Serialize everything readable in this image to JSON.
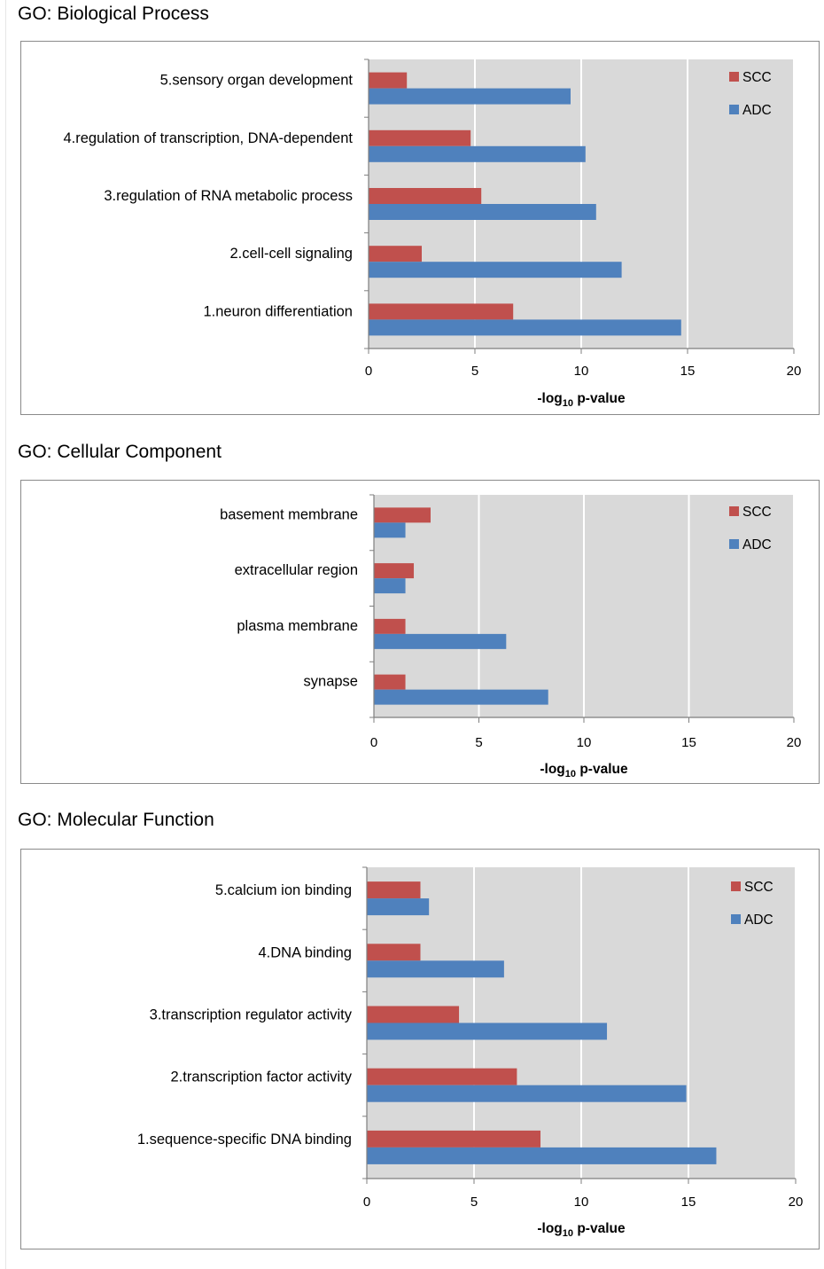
{
  "chart_data": [
    {
      "type": "bar",
      "orientation": "horizontal",
      "title": "GO: Biological Process",
      "categories": [
        "5.sensory organ development",
        "4.regulation of transcription, DNA-dependent",
        "3.regulation of RNA metabolic process",
        "2.cell-cell signaling",
        "1.neuron differentiation"
      ],
      "series": [
        {
          "name": "SCC",
          "color": "#c0504d",
          "values": [
            1.8,
            4.8,
            5.3,
            2.5,
            6.8
          ]
        },
        {
          "name": "ADC",
          "color": "#4f81bd",
          "values": [
            9.5,
            10.2,
            10.7,
            11.9,
            14.7
          ]
        }
      ],
      "xlabel_main": "-log",
      "xlabel_sub": "10",
      "xlabel_rest": " p-value",
      "xlim": [
        0,
        20
      ],
      "xticks": [
        "0",
        "5",
        "10",
        "15",
        "20"
      ],
      "grid": true,
      "legend": "top-right"
    },
    {
      "type": "bar",
      "orientation": "horizontal",
      "title": "GO: Cellular Component",
      "categories": [
        "basement membrane",
        "extracellular region",
        "plasma membrane",
        "synapse"
      ],
      "series": [
        {
          "name": "SCC",
          "color": "#c0504d",
          "values": [
            2.7,
            1.9,
            1.5,
            1.5
          ]
        },
        {
          "name": "ADC",
          "color": "#4f81bd",
          "values": [
            1.5,
            1.5,
            6.3,
            8.3
          ]
        }
      ],
      "xlabel_main": "-log",
      "xlabel_sub": "10",
      "xlabel_rest": " p-value",
      "xlim": [
        0,
        20
      ],
      "xticks": [
        "0",
        "5",
        "10",
        "15",
        "20"
      ],
      "grid": true,
      "legend": "top-right"
    },
    {
      "type": "bar",
      "orientation": "horizontal",
      "title": "GO: Molecular Function",
      "categories": [
        "5.calcium ion binding",
        "4.DNA binding",
        "3.transcription regulator activity",
        "2.transcription factor activity",
        "1.sequence-specific DNA binding"
      ],
      "series": [
        {
          "name": "SCC",
          "color": "#c0504d",
          "values": [
            2.5,
            2.5,
            4.3,
            7.0,
            8.1
          ]
        },
        {
          "name": "ADC",
          "color": "#4f81bd",
          "values": [
            2.9,
            6.4,
            11.2,
            14.9,
            16.3
          ]
        }
      ],
      "xlabel_main": "-log",
      "xlabel_sub": "10",
      "xlabel_rest": " p-value",
      "xlim": [
        0,
        20
      ],
      "xticks": [
        "0",
        "5",
        "10",
        "15",
        "20"
      ],
      "grid": true,
      "legend": "top-right"
    }
  ]
}
